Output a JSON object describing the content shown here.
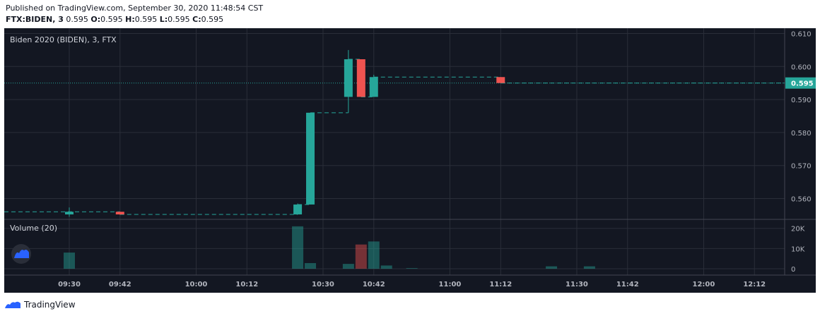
{
  "header": {
    "published_line": "Published on TradingView.com, September 30, 2020 11:48:54 CST",
    "symbol": "FTX:BIDEN, 3",
    "price": "0.595",
    "o_label": "O:",
    "o_value": "0.595",
    "h_label": "H:",
    "h_value": "0.595",
    "l_label": "L:",
    "l_value": "0.595",
    "c_label": "C:",
    "c_value": "0.595"
  },
  "footer": {
    "brand": "TradingView"
  },
  "colors": {
    "background": "#131722",
    "grid": "#2a2e39",
    "up": "#26a69a",
    "down": "#ef5350",
    "text": "#b2b5be",
    "price_line": "#26a69a"
  },
  "chart_data": {
    "type": "candlestick",
    "title": "Biden 2020 (BIDEN), 3, FTX",
    "interval_minutes": 3,
    "x_ticks": [
      "09:30",
      "09:42",
      "10:00",
      "10:12",
      "10:30",
      "10:42",
      "11:00",
      "11:12",
      "11:30",
      "11:42",
      "12:00",
      "12:12"
    ],
    "y_ticks": [
      "0.610",
      "0.600",
      "0.590",
      "0.580",
      "0.570",
      "0.560"
    ],
    "ylim": [
      0.5537,
      0.6116
    ],
    "last_price": 0.595,
    "last_price_label": "0.595",
    "candles": [
      {
        "time": "09:30",
        "open": 0.5552,
        "high": 0.5573,
        "low": 0.5545,
        "close": 0.556,
        "dir": "up"
      },
      {
        "time": "09:42",
        "open": 0.556,
        "high": 0.556,
        "low": 0.5551,
        "close": 0.5552,
        "dir": "down"
      },
      {
        "time": "10:24",
        "open": 0.5552,
        "high": 0.5585,
        "low": 0.5552,
        "close": 0.5582,
        "dir": "up"
      },
      {
        "time": "10:27",
        "open": 0.5582,
        "high": 0.586,
        "low": 0.5582,
        "close": 0.586,
        "dir": "up"
      },
      {
        "time": "10:36",
        "open": 0.5908,
        "high": 0.605,
        "low": 0.586,
        "close": 0.6022,
        "dir": "up"
      },
      {
        "time": "10:39",
        "open": 0.6022,
        "high": 0.6022,
        "low": 0.5908,
        "close": 0.5908,
        "dir": "down"
      },
      {
        "time": "10:42",
        "open": 0.5908,
        "high": 0.5975,
        "low": 0.5908,
        "close": 0.5968,
        "dir": "up"
      },
      {
        "time": "11:12",
        "open": 0.5968,
        "high": 0.5968,
        "low": 0.595,
        "close": 0.595,
        "dir": "down"
      }
    ],
    "volume": {
      "label": "Volume (20)",
      "y_ticks": [
        "20K",
        "10K",
        "0"
      ],
      "ylim": [
        0,
        22000
      ],
      "bars": [
        {
          "time": "09:30",
          "value": 8000,
          "dir": "up"
        },
        {
          "time": "10:24",
          "value": 21000,
          "dir": "up"
        },
        {
          "time": "10:27",
          "value": 2800,
          "dir": "up"
        },
        {
          "time": "10:36",
          "value": 2400,
          "dir": "up"
        },
        {
          "time": "10:39",
          "value": 12000,
          "dir": "down"
        },
        {
          "time": "10:42",
          "value": 13500,
          "dir": "up"
        },
        {
          "time": "10:45",
          "value": 1600,
          "dir": "up"
        },
        {
          "time": "10:51",
          "value": 300,
          "dir": "up"
        },
        {
          "time": "11:24",
          "value": 1200,
          "dir": "up"
        },
        {
          "time": "11:33",
          "value": 1200,
          "dir": "up"
        }
      ]
    }
  }
}
